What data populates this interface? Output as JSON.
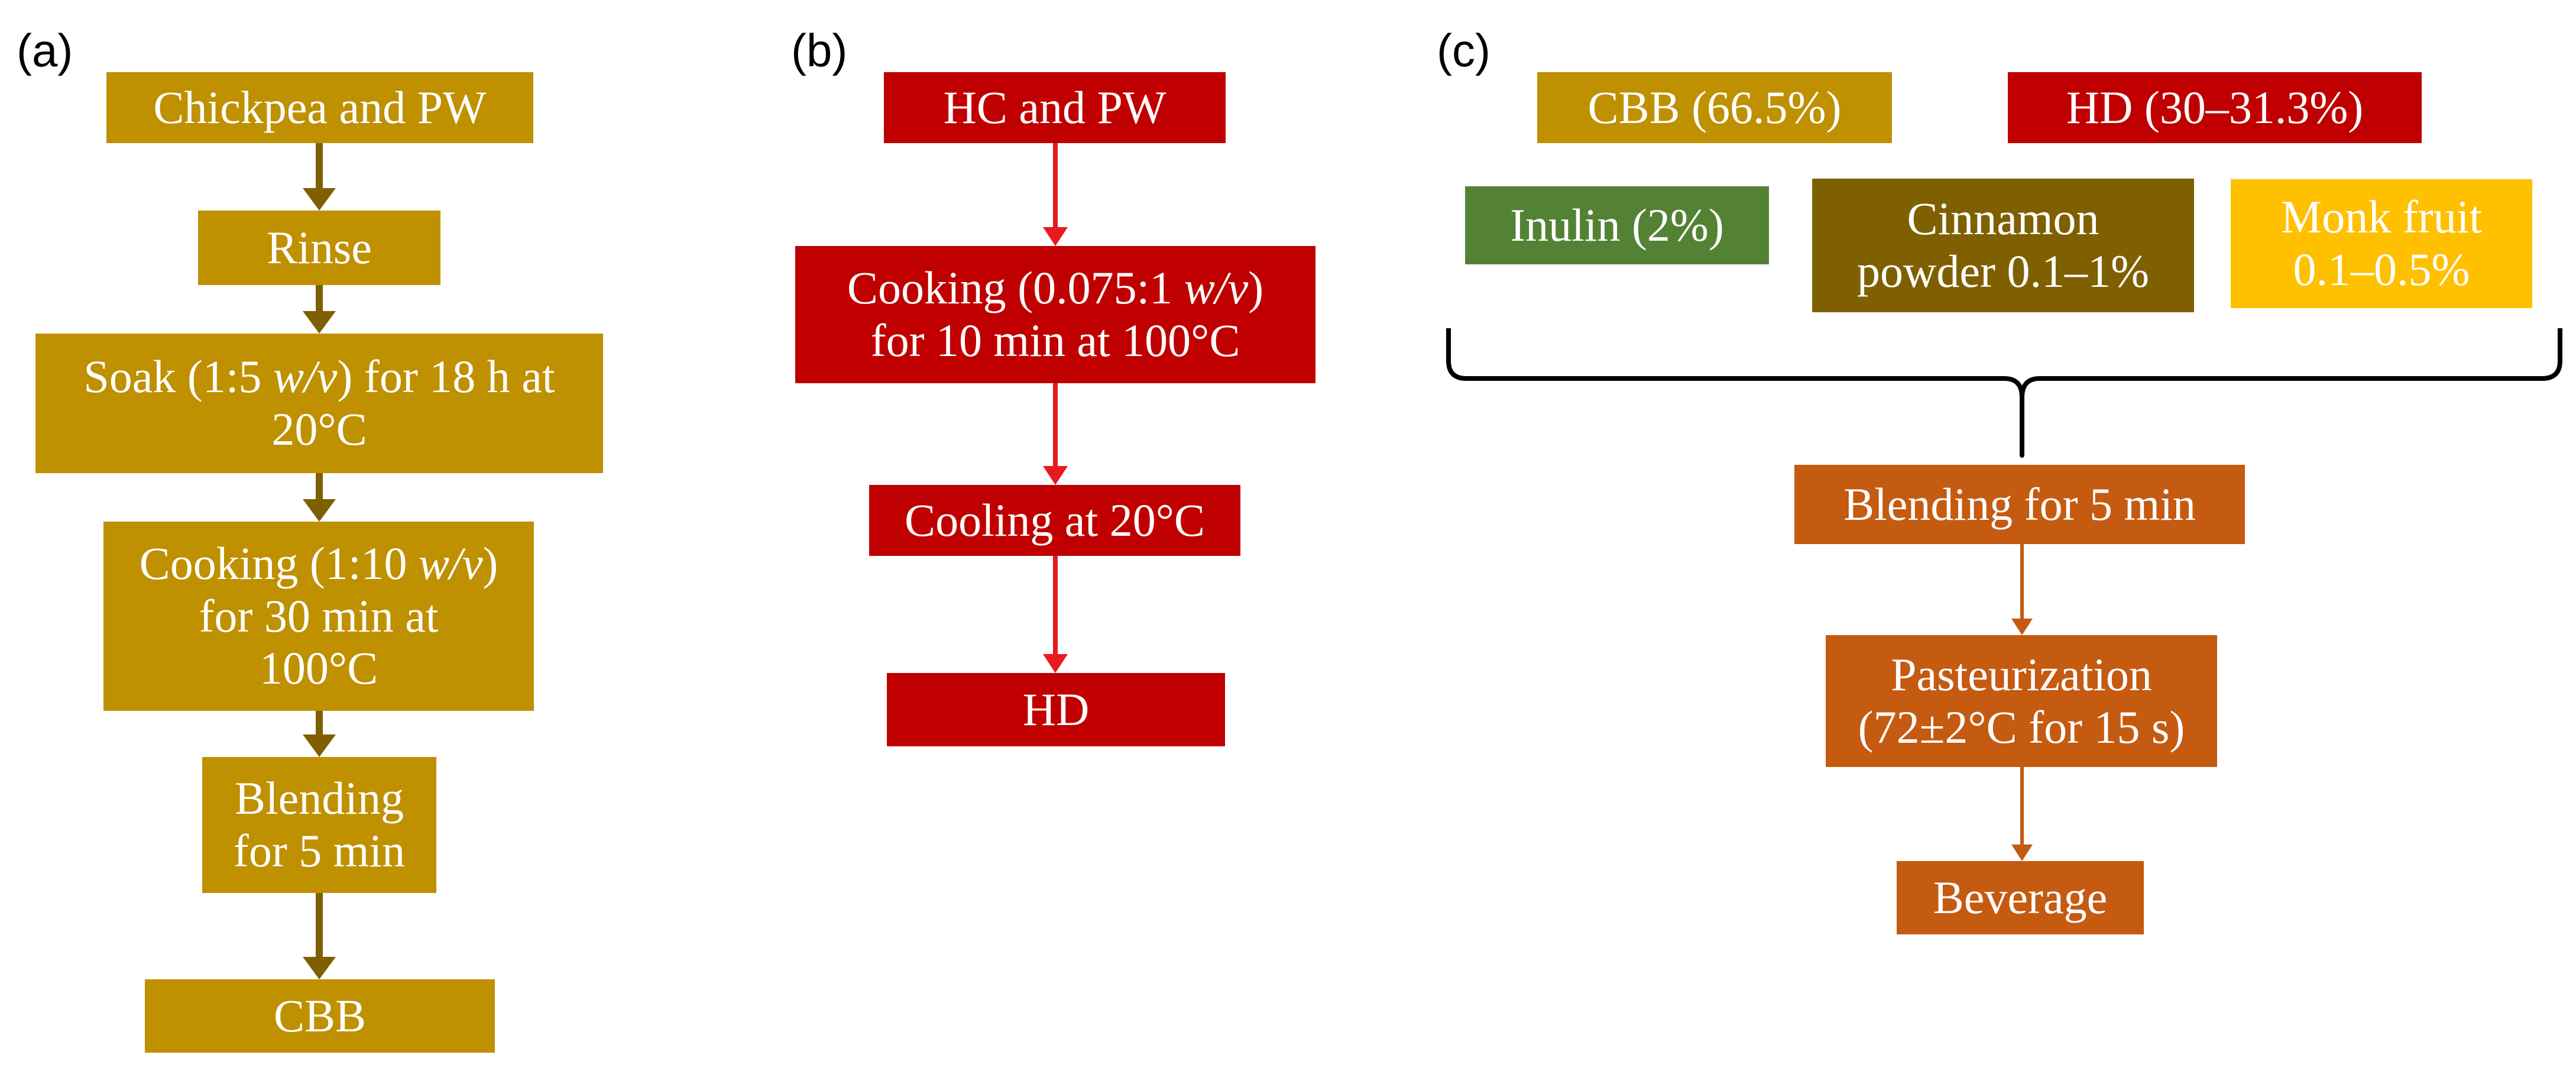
{
  "panels": {
    "a": {
      "label": "(a)",
      "color": "#BF9000",
      "arrow_color": "#7F6000",
      "steps": {
        "chickpea_pw": "Chickpea and PW",
        "rinse": "Rinse",
        "soak_pre": "Soak (1:5 ",
        "soak_ratio_unit": "w/v",
        "soak_post": ") for 18 h at",
        "soak_line2": "20°C",
        "cook_pre": "Cooking (1:10 ",
        "cook_ratio_unit": "w/v",
        "cook_post": ")",
        "cook_line2": "for 30 min at",
        "cook_line3": "100°C",
        "blend_line1": "Blending",
        "blend_line2": "for 5 min",
        "cbb": "CBB"
      }
    },
    "b": {
      "label": "(b)",
      "color": "#C00000",
      "arrow_color": "#E00000",
      "steps": {
        "hc_pw": "HC and PW",
        "cook_pre": "Cooking (0.075:1 ",
        "cook_ratio_unit": "w/v",
        "cook_post": ")",
        "cook_line2": "for 10 min at 100°C",
        "cooling": "Cooling at 20°C",
        "hd": "HD"
      }
    },
    "c": {
      "label": "(c)",
      "arrow_color": "#C55A11",
      "ingredients": {
        "cbb": "CBB (66.5%)",
        "hd": "HD (30–31.3%)",
        "inulin": "Inulin (2%)",
        "cinnamon_line1": "Cinnamon",
        "cinnamon_line2": "powder 0.1–1%",
        "monk_line1": "Monk fruit",
        "monk_line2": "0.1–0.5%"
      },
      "colors": {
        "cbb": "#BF9000",
        "hd": "#C00000",
        "inulin": "#548235",
        "cinnamon": "#7F6000",
        "monk": "#FFC000",
        "process": "#C55A11"
      },
      "steps": {
        "blending": "Blending for 5 min",
        "past_line1": "Pasteurization",
        "past_line2": "(72±2°C for 15 s)",
        "beverage": "Beverage"
      }
    }
  }
}
